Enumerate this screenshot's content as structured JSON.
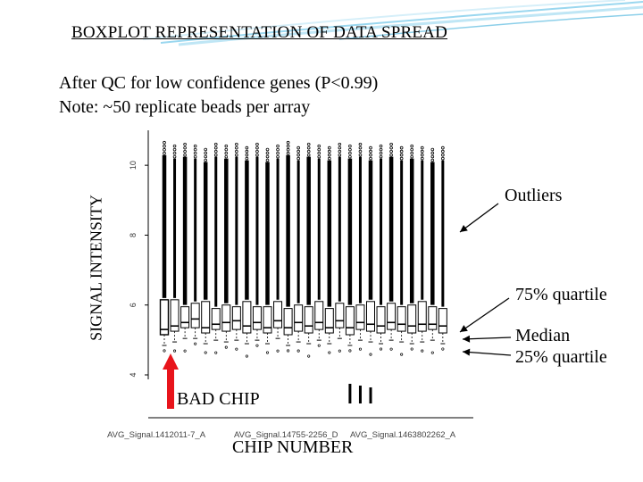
{
  "slide": {
    "title": "BOXPLOT REPRESENTATION OF DATA SPREAD",
    "subtitle_line1": "After QC for low confidence genes (P<0.99)",
    "subtitle_line2": "Note: ~50 replicate beads per array"
  },
  "annotations": {
    "outliers": "Outliers",
    "q75": "75% quartile",
    "median": "Median",
    "q25": "25% quartile",
    "bad_chip": "BAD CHIP"
  },
  "colors": {
    "arrow": "#e8141b",
    "box": "#000000",
    "swoosh": "#9ad7ef"
  },
  "chart_data": {
    "type": "boxplot",
    "ylabel": "SIGNAL INTENSITY",
    "xlabel": "CHIP NUMBER",
    "ytick_labels": [
      "4",
      "6",
      "8",
      "10"
    ],
    "ylim": [
      4,
      11
    ],
    "x_tick_labels": [
      "AVG_Signal.1412011-7_A",
      "AVG_Signal.14755-2256_D",
      "AVG_Signal.1463802262_A"
    ],
    "boxes": [
      {
        "q1": 5.15,
        "median": 5.3,
        "q3": 6.15,
        "whisker_high": 10.65
      },
      {
        "q1": 5.25,
        "median": 5.4,
        "q3": 6.15,
        "whisker_high": 10.55
      },
      {
        "q1": 5.35,
        "median": 5.5,
        "q3": 5.95,
        "whisker_high": 10.6
      },
      {
        "q1": 5.35,
        "median": 5.6,
        "q3": 6.05,
        "whisker_high": 10.55
      },
      {
        "q1": 5.2,
        "median": 5.35,
        "q3": 6.1,
        "whisker_high": 10.45
      },
      {
        "q1": 5.3,
        "median": 5.45,
        "q3": 5.9,
        "whisker_high": 10.6
      },
      {
        "q1": 5.25,
        "median": 5.5,
        "q3": 6.0,
        "whisker_high": 10.55
      },
      {
        "q1": 5.3,
        "median": 5.55,
        "q3": 5.95,
        "whisker_high": 10.6
      },
      {
        "q1": 5.2,
        "median": 5.4,
        "q3": 6.1,
        "whisker_high": 10.5
      },
      {
        "q1": 5.3,
        "median": 5.5,
        "q3": 5.95,
        "whisker_high": 10.6
      },
      {
        "q1": 5.2,
        "median": 5.35,
        "q3": 5.95,
        "whisker_high": 10.45
      },
      {
        "q1": 5.35,
        "median": 5.55,
        "q3": 6.1,
        "whisker_high": 10.55
      },
      {
        "q1": 5.15,
        "median": 5.35,
        "q3": 5.9,
        "whisker_high": 10.65
      },
      {
        "q1": 5.25,
        "median": 5.5,
        "q3": 6.0,
        "whisker_high": 10.5
      },
      {
        "q1": 5.2,
        "median": 5.4,
        "q3": 5.95,
        "whisker_high": 10.6
      },
      {
        "q1": 5.3,
        "median": 5.5,
        "q3": 6.1,
        "whisker_high": 10.55
      },
      {
        "q1": 5.2,
        "median": 5.35,
        "q3": 5.9,
        "whisker_high": 10.5
      },
      {
        "q1": 5.35,
        "median": 5.55,
        "q3": 6.05,
        "whisker_high": 10.6
      },
      {
        "q1": 5.15,
        "median": 5.35,
        "q3": 5.95,
        "whisker_high": 10.55
      },
      {
        "q1": 5.3,
        "median": 5.5,
        "q3": 6.0,
        "whisker_high": 10.6
      },
      {
        "q1": 5.25,
        "median": 5.45,
        "q3": 6.1,
        "whisker_high": 10.5
      },
      {
        "q1": 5.2,
        "median": 5.4,
        "q3": 5.95,
        "whisker_high": 10.55
      },
      {
        "q1": 5.3,
        "median": 5.5,
        "q3": 6.05,
        "whisker_high": 10.6
      },
      {
        "q1": 5.25,
        "median": 5.45,
        "q3": 5.95,
        "whisker_high": 10.5
      },
      {
        "q1": 5.2,
        "median": 5.4,
        "q3": 6.0,
        "whisker_high": 10.55
      },
      {
        "q1": 5.25,
        "median": 5.45,
        "q3": 6.1,
        "whisker_high": 10.5
      },
      {
        "q1": 5.3,
        "median": 5.45,
        "q3": 5.95,
        "whisker_high": 10.45
      },
      {
        "q1": 5.2,
        "median": 5.4,
        "q3": 5.9,
        "whisker_high": 10.5
      }
    ],
    "bad_chip_index": 0,
    "deep_outlier_indices": [
      18,
      19,
      20
    ]
  }
}
